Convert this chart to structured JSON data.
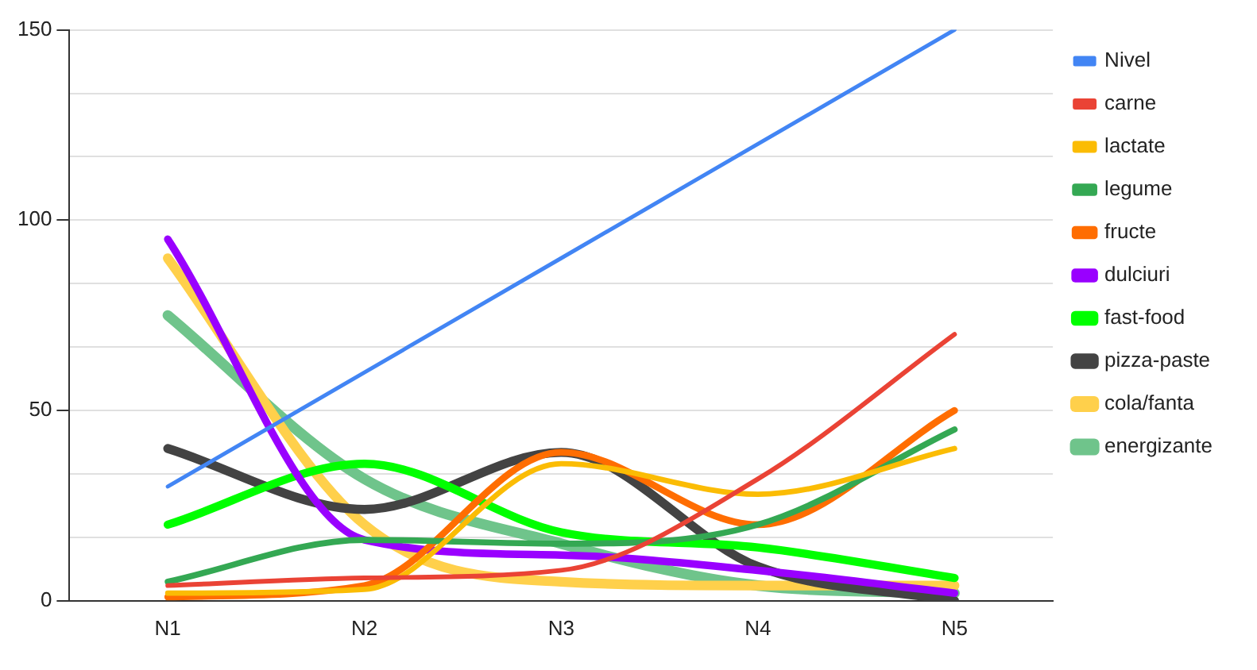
{
  "chart_data": {
    "type": "line",
    "categories": [
      "N1",
      "N2",
      "N3",
      "N4",
      "N5"
    ],
    "series": [
      {
        "name": "Nivel",
        "color": "#4285f4",
        "values": [
          30,
          60,
          90,
          120,
          150
        ]
      },
      {
        "name": "carne",
        "color": "#ea4335",
        "values": [
          4,
          6,
          8,
          32,
          70
        ]
      },
      {
        "name": "lactate",
        "color": "#fbbc04",
        "values": [
          2,
          3,
          36,
          28,
          40
        ]
      },
      {
        "name": "legume",
        "color": "#34a853",
        "values": [
          5,
          16,
          15,
          20,
          45
        ]
      },
      {
        "name": "fructe",
        "color": "#ff6d01",
        "values": [
          1,
          4,
          39,
          20,
          50
        ]
      },
      {
        "name": "dulciuri",
        "color": "#9900ff",
        "values": [
          95,
          16,
          12,
          8,
          2
        ]
      },
      {
        "name": "fast-food",
        "color": "#00ff00",
        "values": [
          20,
          36,
          18,
          14,
          6
        ]
      },
      {
        "name": "pizza-paste",
        "color": "#434343",
        "values": [
          40,
          24,
          39,
          9,
          0
        ]
      },
      {
        "name": "cola/fanta",
        "color": "#ffd04b",
        "values": [
          90,
          20,
          5,
          4,
          4
        ]
      },
      {
        "name": "energizante",
        "color": "#6fc48b",
        "values": [
          75,
          32,
          15,
          4,
          2
        ]
      }
    ],
    "ylim": [
      0,
      150
    ],
    "yticks": [
      0,
      {
        "value": 16.67,
        "label": null
      },
      {
        "value": 33.33,
        "label": null
      },
      50,
      {
        "value": 66.67,
        "label": null
      },
      {
        "value": 83.33,
        "label": null
      },
      100,
      {
        "value": 116.67,
        "label": null
      },
      {
        "value": 133.33,
        "label": null
      },
      150
    ],
    "grid": "y",
    "legend": "right",
    "marker": "none",
    "line_style": "solid"
  }
}
